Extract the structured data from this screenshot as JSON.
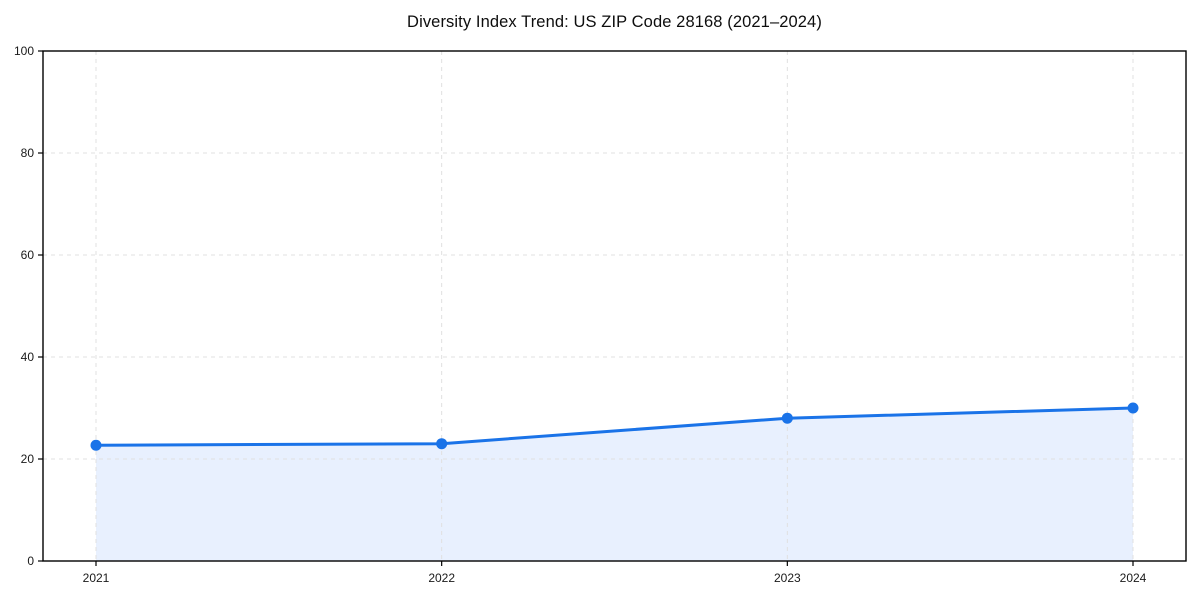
{
  "chart": {
    "title": "Diversity Index Trend: US ZIP Code 28168 (2021–2024)"
  },
  "chart_data": {
    "type": "area",
    "title": "Diversity Index Trend: US ZIP Code 28168 (2021–2024)",
    "categories": [
      "2021",
      "2022",
      "2023",
      "2024"
    ],
    "series": [
      {
        "name": "Diversity Index",
        "values": [
          22.7,
          23,
          28,
          30
        ]
      }
    ],
    "xlabel": "",
    "ylabel": "",
    "ylim": [
      0,
      100
    ],
    "yticks": [
      0,
      20,
      40,
      60,
      80,
      100
    ],
    "grid": true,
    "grid_style": "dashed",
    "legend": false,
    "marker": "circle",
    "colors": {
      "line": "#1a73e8",
      "fill": "#e8f0fe",
      "grid": "#e0e0e0",
      "axis": "#000000",
      "tick_text": "#1a1a1a",
      "background": "#ffffff"
    }
  }
}
